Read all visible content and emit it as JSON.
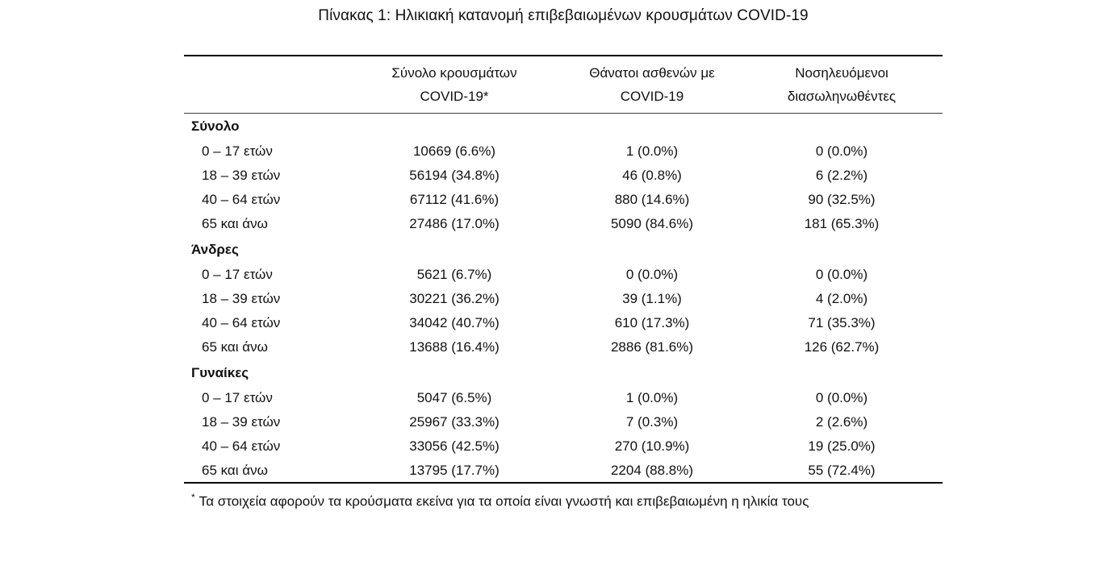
{
  "title": "Πίνακας 1: Ηλικιακή κατανομή επιβεβαιωμένων κρουσμάτων COVID-19",
  "header": {
    "col2": {
      "line1": "Σύνολο κρουσμάτων",
      "line2": "COVID-19*"
    },
    "col3": {
      "line1": "Θάνατοι ασθενών με",
      "line2": "COVID-19"
    },
    "col4": {
      "line1": "Νοσηλευόμενοι",
      "line2": "διασωληνωθέντες"
    }
  },
  "sections": [
    {
      "label": "Σύνολο",
      "rows": [
        {
          "age": "0 – 17 ετών",
          "cases": "10669 (6.6%)",
          "deaths": "1 (0.0%)",
          "intubated": "0 (0.0%)"
        },
        {
          "age": "18 – 39 ετών",
          "cases": "56194 (34.8%)",
          "deaths": "46 (0.8%)",
          "intubated": "6 (2.2%)"
        },
        {
          "age": "40 – 64 ετών",
          "cases": "67112 (41.6%)",
          "deaths": "880 (14.6%)",
          "intubated": "90 (32.5%)"
        },
        {
          "age": "65 και άνω",
          "cases": "27486 (17.0%)",
          "deaths": "5090 (84.6%)",
          "intubated": "181 (65.3%)"
        }
      ]
    },
    {
      "label": "Άνδρες",
      "rows": [
        {
          "age": "0 – 17 ετών",
          "cases": "5621 (6.7%)",
          "deaths": "0 (0.0%)",
          "intubated": "0 (0.0%)"
        },
        {
          "age": "18 – 39 ετών",
          "cases": "30221 (36.2%)",
          "deaths": "39 (1.1%)",
          "intubated": "4 (2.0%)"
        },
        {
          "age": "40 – 64 ετών",
          "cases": "34042 (40.7%)",
          "deaths": "610 (17.3%)",
          "intubated": "71 (35.3%)"
        },
        {
          "age": "65 και άνω",
          "cases": "13688 (16.4%)",
          "deaths": "2886 (81.6%)",
          "intubated": "126 (62.7%)"
        }
      ]
    },
    {
      "label": "Γυναίκες",
      "rows": [
        {
          "age": "0 – 17 ετών",
          "cases": "5047 (6.5%)",
          "deaths": "1 (0.0%)",
          "intubated": "0 (0.0%)"
        },
        {
          "age": "18 – 39 ετών",
          "cases": "25967 (33.3%)",
          "deaths": "7 (0.3%)",
          "intubated": "2 (2.6%)"
        },
        {
          "age": "40 – 64 ετών",
          "cases": "33056 (42.5%)",
          "deaths": "270 (10.9%)",
          "intubated": "19 (25.0%)"
        },
        {
          "age": "65 και άνω",
          "cases": "13795 (17.7%)",
          "deaths": "2204 (88.8%)",
          "intubated": "55 (72.4%)"
        }
      ]
    }
  ],
  "footnote": {
    "marker": "*",
    "text": "Τα στοιχεία αφορούν τα κρούσματα εκείνα για τα οποία είναι γνωστή και επιβεβαιωμένη η ηλικία τους"
  },
  "colors": {
    "background": "#ffffff",
    "text": "#111111",
    "rule": "#000000"
  }
}
